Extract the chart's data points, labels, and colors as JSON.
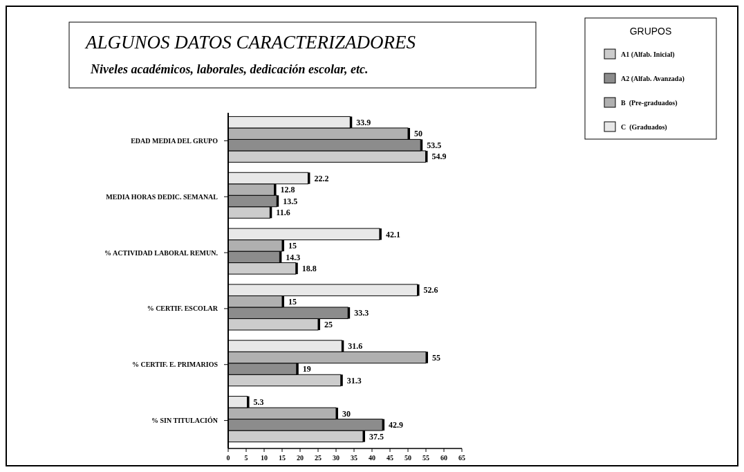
{
  "chart_data": {
    "type": "bar",
    "orientation": "horizontal",
    "title": "ALGUNOS DATOS CARACTERIZADORES",
    "subtitle": "Niveles académicos, laborales, dedicación escolar, etc.",
    "legend_title": "GRUPOS",
    "categories": [
      "EDAD MEDIA DEL GRUPO",
      "MEDIA HORAS DEDIC. SEMANAL",
      "% ACTIVIDAD LABORAL REMUN.",
      "% CERTIF. ESCOLAR",
      "% CERTIF. E. PRIMARIOS",
      "% SIN TITULACIÓN"
    ],
    "series": [
      {
        "name": "A1 (Alfab. Inicial)",
        "color": "#cccccc",
        "values": [
          54.9,
          11.6,
          18.8,
          25,
          31.3,
          37.5
        ]
      },
      {
        "name": "A2 (Alfab. Avanzada)",
        "color": "#8c8c8c",
        "values": [
          53.5,
          13.5,
          14.3,
          33.3,
          19,
          42.9
        ]
      },
      {
        "name": "B  (Pre-graduados)",
        "color": "#b0b0b0",
        "values": [
          50,
          12.8,
          15,
          15,
          55,
          30
        ]
      },
      {
        "name": "C  (Graduados)",
        "color": "#e8e8e8",
        "values": [
          33.9,
          22.2,
          42.1,
          52.6,
          31.6,
          5.3
        ]
      }
    ],
    "xlim": [
      0,
      65
    ],
    "xticks": [
      0,
      5,
      10,
      15,
      20,
      25,
      30,
      35,
      40,
      45,
      50,
      55,
      60,
      65
    ],
    "data_labels": true,
    "grid": false,
    "legend": "top right"
  }
}
